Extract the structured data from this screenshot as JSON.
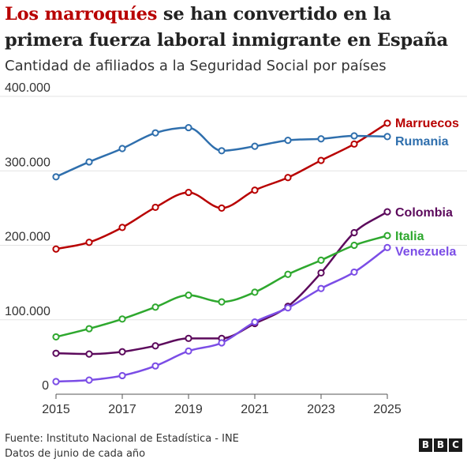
{
  "title": {
    "accent": "Los marroquíes",
    "rest": " se han convertido en la primera fuerza laboral inmigrante en España"
  },
  "subtitle": "Cantidad de afiliados a la Seguridad Social por países",
  "footer": {
    "source": "Fuente: Instituto Nacional de Estadística - INE",
    "note": "Datos de junio de cada año"
  },
  "logo": [
    "B",
    "B",
    "C"
  ],
  "chart_data": {
    "type": "line",
    "x": [
      2015,
      2016,
      2017,
      2018,
      2019,
      2020,
      2021,
      2022,
      2023,
      2024,
      2025
    ],
    "xticks": [
      "2015",
      "2017",
      "2019",
      "2021",
      "2023",
      "2025"
    ],
    "xtick_values": [
      2015,
      2017,
      2019,
      2021,
      2023,
      2025
    ],
    "yticks": [
      "0",
      "100.000",
      "200.000",
      "300.000",
      "400.000"
    ],
    "ytick_values": [
      0,
      100000,
      200000,
      300000,
      400000
    ],
    "ylim": [
      0,
      400000
    ],
    "xlim": [
      2015,
      2025
    ],
    "grid": true,
    "series": [
      {
        "name": "Marruecos",
        "color": "#b80000",
        "values": [
          195000,
          204000,
          224000,
          251000,
          271000,
          250000,
          274000,
          291000,
          314000,
          336000,
          364000
        ]
      },
      {
        "name": "Rumania",
        "color": "#2f6fad",
        "values": [
          292000,
          312000,
          330000,
          351000,
          358000,
          327000,
          333000,
          341000,
          343000,
          347000,
          346000
        ]
      },
      {
        "name": "Colombia",
        "color": "#5c0a5c",
        "values": [
          55000,
          54000,
          57000,
          65000,
          75000,
          75000,
          95000,
          118000,
          163000,
          217000,
          245000
        ]
      },
      {
        "name": "Italia",
        "color": "#2ea82e",
        "values": [
          77000,
          88000,
          101000,
          117000,
          133000,
          124000,
          137000,
          161000,
          180000,
          200000,
          213000
        ]
      },
      {
        "name": "Venezuela",
        "color": "#7b4de6",
        "values": [
          17000,
          19000,
          25000,
          38000,
          58000,
          69000,
          97000,
          116000,
          142000,
          164000,
          197000
        ]
      }
    ]
  }
}
